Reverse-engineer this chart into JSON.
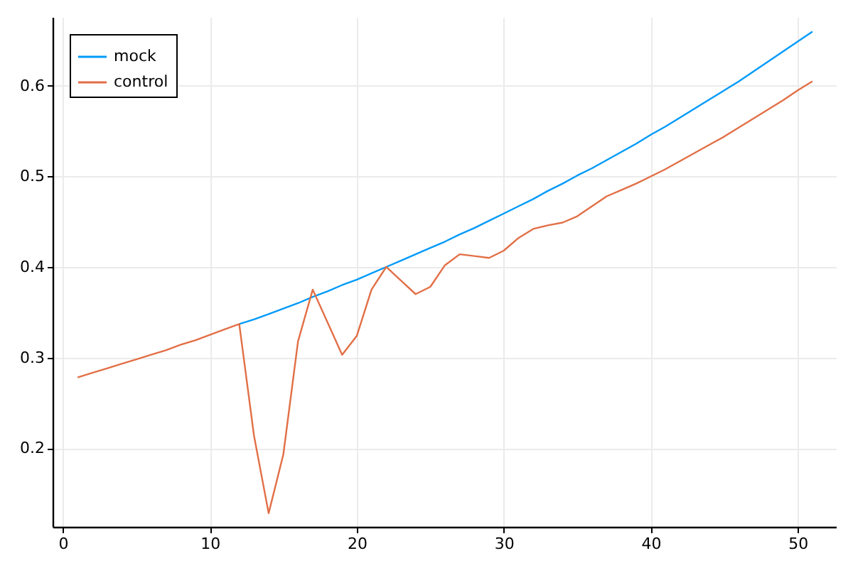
{
  "chart_data": {
    "type": "line",
    "x": [
      1,
      2,
      3,
      4,
      5,
      6,
      7,
      8,
      9,
      10,
      11,
      12,
      13,
      14,
      15,
      16,
      17,
      18,
      19,
      20,
      21,
      22,
      23,
      24,
      25,
      26,
      27,
      28,
      29,
      30,
      31,
      32,
      33,
      34,
      35,
      36,
      37,
      38,
      39,
      40,
      41,
      42,
      43,
      44,
      45,
      46,
      47,
      48,
      49,
      50,
      51
    ],
    "series": [
      {
        "name": "mock",
        "color": "#009af9",
        "values": [
          null,
          null,
          null,
          null,
          null,
          null,
          null,
          null,
          null,
          null,
          null,
          0.337,
          0.342,
          0.348,
          0.354,
          0.36,
          0.367,
          0.373,
          0.38,
          0.386,
          0.393,
          0.4,
          0.407,
          0.414,
          0.421,
          0.428,
          0.436,
          0.443,
          0.451,
          0.459,
          0.467,
          0.475,
          0.484,
          0.492,
          0.501,
          0.509,
          0.518,
          0.527,
          0.536,
          0.546,
          0.555,
          0.565,
          0.575,
          0.585,
          0.595,
          0.605,
          0.616,
          0.627,
          0.638,
          0.649,
          0.66
        ]
      },
      {
        "name": "control",
        "color": "#e26f46",
        "values": [
          0.278,
          0.283,
          0.288,
          0.293,
          0.298,
          0.303,
          0.308,
          0.314,
          0.319,
          0.325,
          0.331,
          0.337,
          0.214,
          0.128,
          0.193,
          0.318,
          0.375,
          0.339,
          0.303,
          0.324,
          0.375,
          0.4,
          0.385,
          0.37,
          0.378,
          0.402,
          0.414,
          0.412,
          0.41,
          0.418,
          0.432,
          0.442,
          0.446,
          0.449,
          0.456,
          0.467,
          0.478,
          0.485,
          0.492,
          0.5,
          0.508,
          0.517,
          0.526,
          0.535,
          0.544,
          0.554,
          0.564,
          0.574,
          0.584,
          0.595,
          0.605
        ]
      }
    ],
    "xlim": [
      -0.7,
      52.6
    ],
    "ylim": [
      0.113,
      0.676
    ],
    "xticks": [
      0,
      10,
      20,
      30,
      40,
      50
    ],
    "yticks": [
      0.2,
      0.3,
      0.4,
      0.5,
      0.6
    ],
    "grid": true,
    "legend": "top left"
  }
}
